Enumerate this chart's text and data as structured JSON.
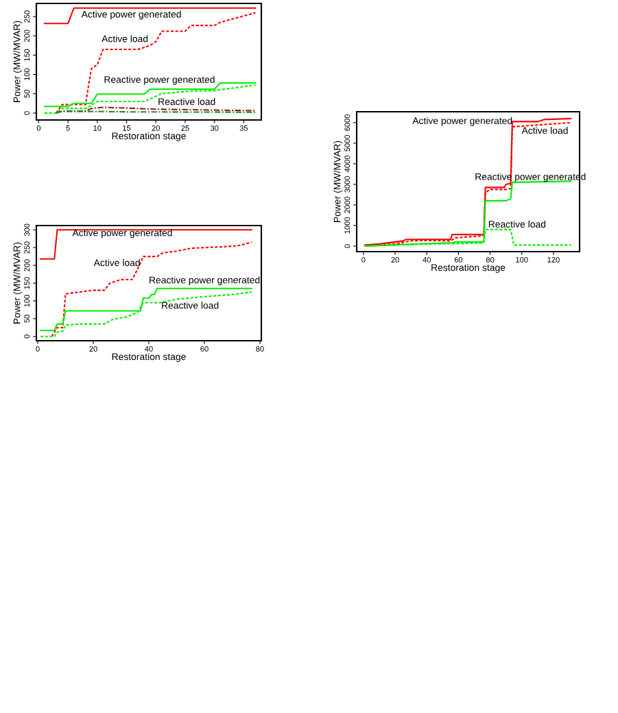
{
  "chart_data": [
    {
      "type": "line",
      "xlabel": "Restoration stage",
      "ylabel": "Power (MW/MVAR)",
      "xlim": [
        -0.4,
        38
      ],
      "ylim": [
        -18,
        284
      ],
      "xticks": [
        0,
        5,
        10,
        15,
        20,
        25,
        30,
        35
      ],
      "yticks": [
        0,
        50,
        100,
        150,
        200,
        250
      ],
      "grid": false,
      "legend": false,
      "series": [
        {
          "color": "#ff0000",
          "line_style": "solid",
          "x": [
            1,
            5,
            6,
            37
          ],
          "values": [
            232,
            232,
            272,
            272
          ]
        },
        {
          "color": "#ff0000",
          "line_style": "dashed",
          "x": [
            3,
            4,
            7,
            8,
            8.5,
            9,
            10,
            11,
            17,
            19,
            20,
            21,
            25,
            26,
            30,
            31,
            37
          ],
          "values": [
            0,
            22,
            22,
            22,
            70,
            115,
            125,
            165,
            165,
            175,
            185,
            212,
            212,
            227,
            227,
            235,
            260
          ]
        },
        {
          "color": "#00ee00",
          "line_style": "solid",
          "x": [
            1,
            5,
            6,
            9,
            10,
            18,
            19,
            30,
            31,
            37
          ],
          "values": [
            17,
            17,
            25,
            25,
            49,
            49,
            62,
            62,
            78,
            78
          ]
        },
        {
          "color": "#00ee00",
          "line_style": "dashed",
          "x": [
            1,
            3,
            4,
            8,
            9,
            10,
            18,
            21,
            26,
            30,
            37
          ],
          "values": [
            0,
            0,
            12,
            12,
            20,
            30,
            30,
            50,
            57,
            58,
            73
          ]
        },
        {
          "color": "#8b1a1a",
          "line_style": "dashdot",
          "x": [
            3,
            4,
            8,
            9,
            11,
            20,
            37
          ],
          "values": [
            0,
            5,
            5,
            12,
            15,
            10,
            6
          ]
        },
        {
          "color": "#228b22",
          "line_style": "dashdot",
          "x": [
            3,
            4,
            10,
            15,
            37
          ],
          "values": [
            0,
            4,
            4,
            3,
            2
          ]
        }
      ],
      "annotations": [
        "Active power generated",
        "Active load",
        "Reactive power generated",
        "Reactive load"
      ]
    },
    {
      "type": "line",
      "xlabel": "Restoration stage",
      "ylabel": "Power (MW/MVAR)",
      "xlim": [
        -0.5,
        80.5
      ],
      "ylim": [
        -12,
        312
      ],
      "xticks": [
        0,
        20,
        40,
        60,
        80
      ],
      "yticks": [
        0,
        50,
        100,
        150,
        200,
        250,
        300
      ],
      "grid": false,
      "legend": false,
      "series": [
        {
          "color": "#ff0000",
          "line_style": "solid",
          "x": [
            1,
            6,
            7,
            77
          ],
          "values": [
            218,
            218,
            300,
            300
          ]
        },
        {
          "color": "#ff0000",
          "line_style": "dashed",
          "x": [
            5,
            6,
            7,
            9,
            10,
            15,
            20,
            24,
            26,
            30,
            34,
            36,
            38,
            43,
            45,
            50,
            55,
            60,
            66,
            72,
            77
          ],
          "values": [
            0,
            12,
            25,
            25,
            120,
            125,
            130,
            130,
            150,
            160,
            160,
            190,
            225,
            225,
            235,
            240,
            248,
            250,
            252,
            255,
            265
          ]
        },
        {
          "color": "#00ee00",
          "line_style": "solid",
          "x": [
            1,
            6,
            7,
            9,
            10,
            37,
            38,
            40,
            41,
            42,
            43,
            77
          ],
          "values": [
            17,
            17,
            35,
            35,
            72,
            72,
            108,
            108,
            118,
            118,
            135,
            135
          ]
        },
        {
          "color": "#00ee00",
          "line_style": "dashed",
          "x": [
            1,
            6,
            7,
            9,
            10,
            15,
            24,
            27,
            32,
            36,
            38,
            40,
            44,
            50,
            60,
            70,
            77
          ],
          "values": [
            0,
            0,
            12,
            15,
            32,
            35,
            35,
            48,
            55,
            68,
            95,
            95,
            95,
            105,
            112,
            118,
            125
          ]
        }
      ],
      "annotations": [
        "Active power generated",
        "Active load",
        "Reactive power generated",
        "Reactive load"
      ]
    },
    {
      "type": "line",
      "xlabel": "Restoration stage",
      "ylabel": "Power (MW/MVAR)",
      "xlim": [
        -4.3,
        136.5
      ],
      "ylim": [
        -270,
        6530
      ],
      "xticks": [
        0,
        20,
        40,
        60,
        80,
        100,
        120
      ],
      "yticks": [
        0,
        1000,
        2000,
        3000,
        4000,
        5000,
        6000
      ],
      "grid": false,
      "legend": false,
      "series": [
        {
          "color": "#ff0000",
          "line_style": "solid",
          "x": [
            1,
            10,
            15,
            20,
            25,
            27,
            55,
            56,
            76,
            77,
            89,
            90,
            93,
            94,
            110,
            114,
            131
          ],
          "values": [
            50,
            100,
            150,
            200,
            250,
            320,
            320,
            560,
            560,
            2850,
            2850,
            3000,
            3050,
            6050,
            6050,
            6150,
            6200
          ]
        },
        {
          "color": "#ff0000",
          "line_style": "dashed",
          "x": [
            1,
            10,
            20,
            30,
            40,
            55,
            58,
            76,
            77,
            80,
            90,
            93,
            94,
            131
          ],
          "values": [
            0,
            50,
            100,
            250,
            270,
            250,
            400,
            500,
            2600,
            2750,
            2750,
            2800,
            5800,
            6000
          ]
        },
        {
          "color": "#00ee00",
          "line_style": "solid",
          "x": [
            1,
            20,
            40,
            55,
            58,
            76,
            77,
            90,
            93,
            94,
            131
          ],
          "values": [
            0,
            60,
            120,
            150,
            200,
            200,
            2200,
            2200,
            2300,
            3100,
            3150
          ]
        },
        {
          "color": "#00ee00",
          "line_style": "dashed",
          "x": [
            1,
            20,
            40,
            60,
            76,
            77,
            93,
            95,
            131
          ],
          "values": [
            0,
            50,
            100,
            120,
            150,
            800,
            800,
            50,
            50
          ]
        }
      ],
      "annotations": [
        "Active power generated",
        "Active load",
        "Reactive power generated",
        "Reactive load"
      ]
    }
  ]
}
